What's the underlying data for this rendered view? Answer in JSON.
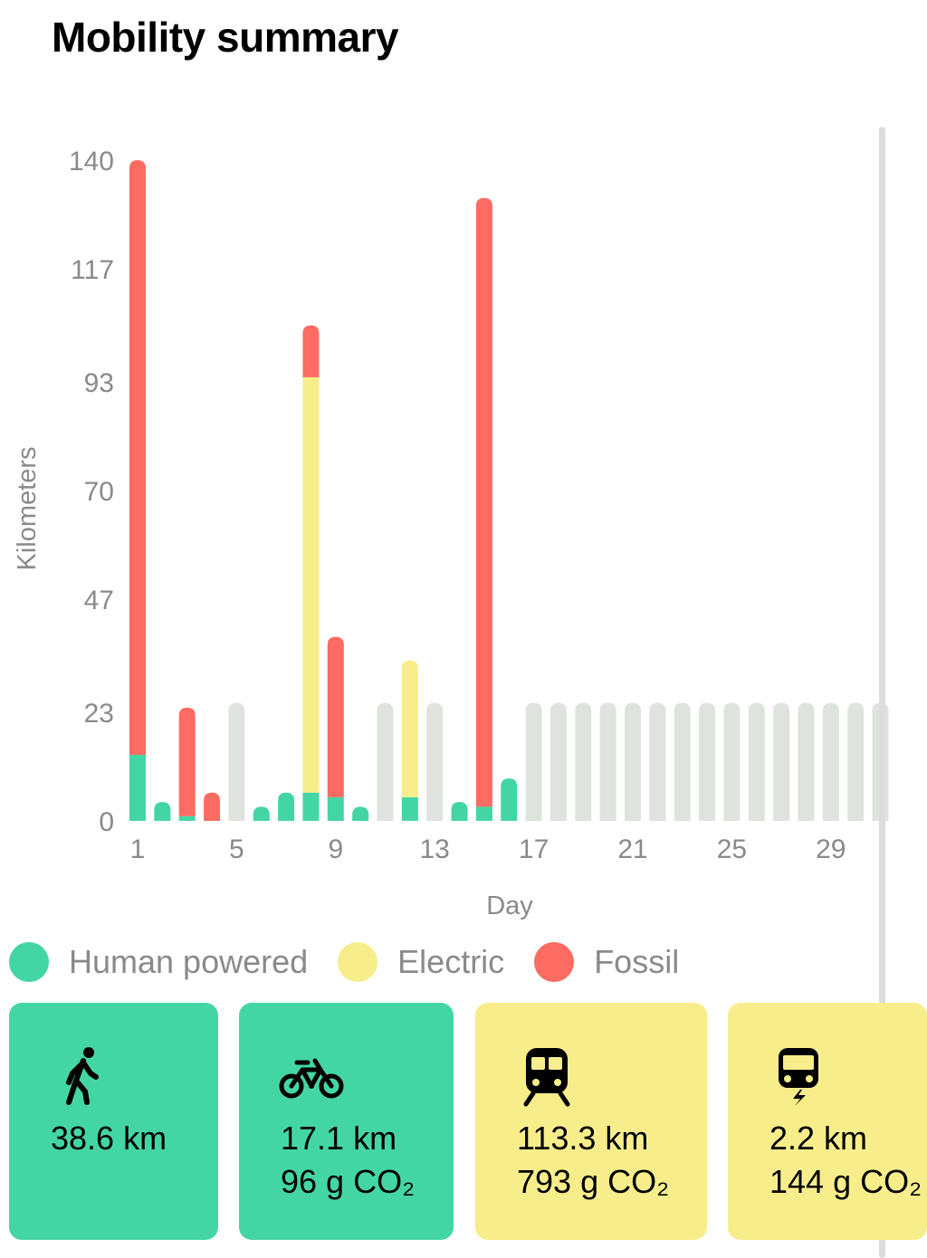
{
  "title": "Mobility summary",
  "colors": {
    "human": "#43d6a4",
    "electric": "#f7ee8b",
    "fossil": "#fd6b62",
    "empty": "#dfe3de",
    "axis_text": "#8a8a8a"
  },
  "chart_data": {
    "type": "bar",
    "stacked": true,
    "xlabel": "Day",
    "ylabel": "Kilometers",
    "ylim": [
      0,
      140
    ],
    "yticks": [
      0,
      23,
      47,
      70,
      93,
      117,
      140
    ],
    "xticks": [
      1,
      5,
      9,
      13,
      17,
      21,
      25,
      29
    ],
    "categories": [
      1,
      2,
      3,
      4,
      5,
      6,
      7,
      8,
      9,
      10,
      11,
      12,
      13,
      14,
      15,
      16,
      17,
      18,
      19,
      20,
      21,
      22,
      23,
      24,
      25,
      26,
      27,
      28,
      29,
      30,
      31
    ],
    "series": [
      {
        "name": "Human powered",
        "color": "#43d6a4",
        "values": [
          14,
          4,
          1,
          0,
          0,
          3,
          6,
          6,
          5,
          3,
          0,
          5,
          0,
          4,
          3,
          9,
          0,
          0,
          0,
          0,
          0,
          0,
          0,
          0,
          0,
          0,
          0,
          0,
          0,
          0,
          0
        ]
      },
      {
        "name": "Electric",
        "color": "#f7ee8b",
        "values": [
          0,
          0,
          0,
          0,
          0,
          0,
          0,
          88,
          0,
          0,
          0,
          29,
          0,
          0,
          0,
          0,
          0,
          0,
          0,
          0,
          0,
          0,
          0,
          0,
          0,
          0,
          0,
          0,
          0,
          0,
          0
        ]
      },
      {
        "name": "Fossil",
        "color": "#fd6b62",
        "values": [
          126,
          0,
          23,
          6,
          0,
          0,
          0,
          11,
          34,
          0,
          0,
          0,
          0,
          0,
          129,
          0,
          0,
          0,
          0,
          0,
          0,
          0,
          0,
          0,
          0,
          0,
          0,
          0,
          0,
          0,
          0
        ]
      }
    ],
    "no_data_days": [
      5,
      11,
      13,
      17,
      18,
      19,
      20,
      21,
      22,
      23,
      24,
      25,
      26,
      27,
      28,
      29,
      30,
      31
    ],
    "legend_position": "bottom"
  },
  "legend": [
    {
      "label": "Human powered",
      "color": "#43d6a4"
    },
    {
      "label": "Electric",
      "color": "#f7ee8b"
    },
    {
      "label": "Fossil",
      "color": "#fd6b62"
    }
  ],
  "cards": [
    {
      "icon": "walking-icon",
      "km": "38.6 km",
      "co2": "",
      "color": "#43d6a4"
    },
    {
      "icon": "bicycle-icon",
      "km": "17.1 km",
      "co2": "96 g CO₂",
      "color": "#43d6a4"
    },
    {
      "icon": "train-icon",
      "km": "113.3 km",
      "co2": "793 g CO₂",
      "color": "#f7ee8b"
    },
    {
      "icon": "electric-bus-icon",
      "km": "2.2 km",
      "co2": "144 g CO₂",
      "color": "#f7ee8b"
    }
  ]
}
